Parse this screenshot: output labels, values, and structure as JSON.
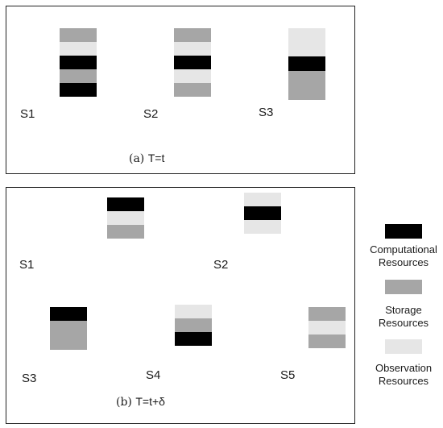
{
  "colors": {
    "computational": "#000000",
    "storage": "#a6a6a6",
    "observation": "#e6e6e6"
  },
  "panel_a": {
    "caption_prefix": "(a)",
    "caption_eq": "T=t",
    "satellites": [
      {
        "label": "S1",
        "blocks": [
          "storage",
          "observation",
          "computational",
          "storage",
          "computational"
        ]
      },
      {
        "label": "S2",
        "blocks": [
          "storage",
          "observation",
          "computational",
          "observation",
          "storage"
        ]
      },
      {
        "label": "S3",
        "blocks": [
          "observation",
          "computational",
          "storage"
        ]
      }
    ]
  },
  "panel_b": {
    "caption_prefix": "(b)",
    "caption_eq": "T=t+δ",
    "satellites": [
      {
        "label": "S1",
        "blocks": [
          "computational",
          "observation",
          "storage"
        ]
      },
      {
        "label": "S2",
        "blocks": [
          "observation",
          "computational",
          "observation"
        ]
      },
      {
        "label": "S3",
        "blocks": [
          "computational",
          "storage"
        ]
      },
      {
        "label": "S4",
        "blocks": [
          "observation",
          "storage",
          "computational"
        ]
      },
      {
        "label": "S5",
        "blocks": [
          "storage",
          "observation",
          "storage"
        ]
      }
    ]
  },
  "legend": [
    {
      "type": "computational",
      "line1": "Computational",
      "line2": "Resources"
    },
    {
      "type": "storage",
      "line1": "Storage",
      "line2": "Resources"
    },
    {
      "type": "observation",
      "line1": "Observation",
      "line2": "Resources"
    }
  ]
}
